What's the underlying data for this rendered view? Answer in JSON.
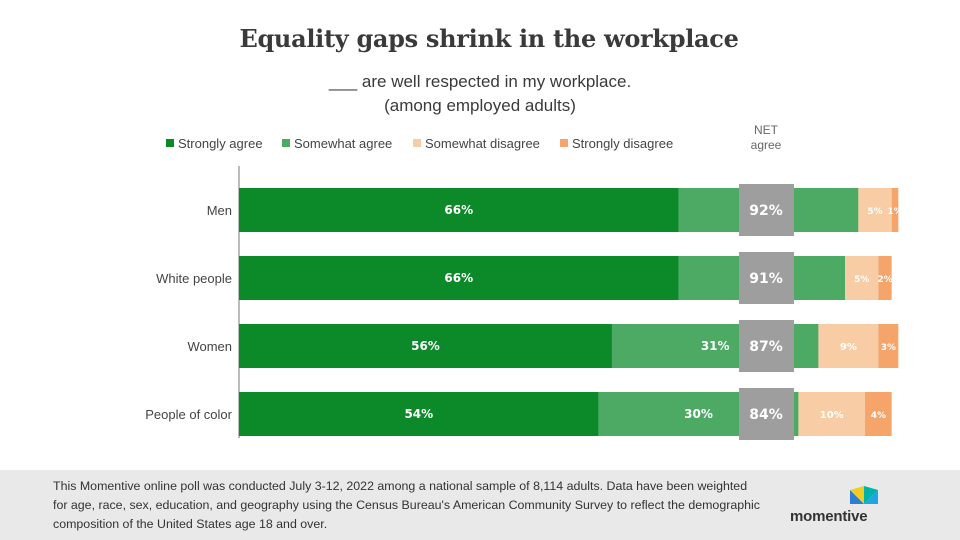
{
  "title": "Equality gaps shrink in the workplace",
  "subtitle": "___ are well respected in my workplace.",
  "subtitle2": "(among employed adults)",
  "net_header": [
    "NET",
    "agree"
  ],
  "footer_note": "This Momentive online poll was conducted July 3-12, 2022 among a national sample of 8,114 adults. Data have been weighted for age, race, sex, education, and geography using the Census Bureau's American Community Survey to reflect the demographic composition of the United States age 18 and over.",
  "logo": {
    "text": "momentive",
    "icon": "momentive-logo-icon"
  },
  "colors": {
    "strongly_agree": "#0c8a2a",
    "somewhat_agree": "#4caa64",
    "somewhat_disagree": "#f8cca4",
    "strongly_disagree": "#f5a46a",
    "net_box": "#9e9e9e"
  },
  "chart_data": {
    "type": "bar",
    "orientation": "horizontal",
    "stacked": true,
    "categories": [
      "Men",
      "White people",
      "Women",
      "People of color"
    ],
    "series": [
      {
        "name": "Strongly agree",
        "values": [
          66,
          66,
          56,
          54
        ]
      },
      {
        "name": "Somewhat agree",
        "values": [
          27,
          25,
          31,
          30
        ]
      },
      {
        "name": "Somewhat disagree",
        "values": [
          5,
          5,
          9,
          10
        ]
      },
      {
        "name": "Strongly disagree",
        "values": [
          1,
          2,
          3,
          4
        ]
      }
    ],
    "net_agree": [
      "92%",
      "91%",
      "87%",
      "84%"
    ],
    "legend_position": "top",
    "grid": false
  }
}
